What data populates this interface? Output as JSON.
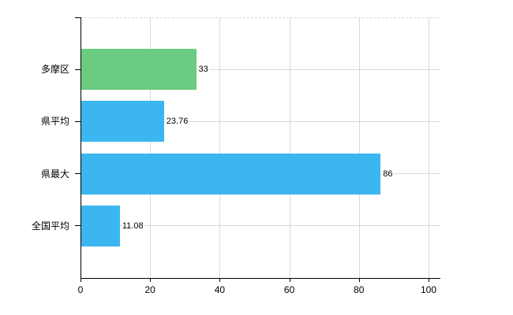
{
  "chart_data": {
    "type": "bar",
    "orientation": "horizontal",
    "title": "",
    "categories": [
      "多摩区",
      "県平均",
      "県最大",
      "全国平均"
    ],
    "values": [
      33,
      23.76,
      86,
      11.08
    ],
    "value_labels": [
      "33",
      "23.76",
      "86",
      "11.08"
    ],
    "series_colors": [
      "#6bcb80",
      "#3cb6f0",
      "#3cb6f0",
      "#3cb6f0"
    ],
    "x_ticks": [
      0,
      20,
      40,
      60,
      80,
      100
    ],
    "x_tick_labels": [
      "0",
      "20",
      "40",
      "60",
      "80",
      "100"
    ],
    "xlim": [
      0,
      100
    ],
    "grid": true,
    "legend": false,
    "style": {
      "background_color": "#ffffff",
      "grid_color": "#d9d9d9",
      "axis_color": "#000000",
      "text_color": "#000000",
      "green_bar_color": "#6bcb80",
      "blue_bar_color": "#3cb6f0"
    }
  }
}
